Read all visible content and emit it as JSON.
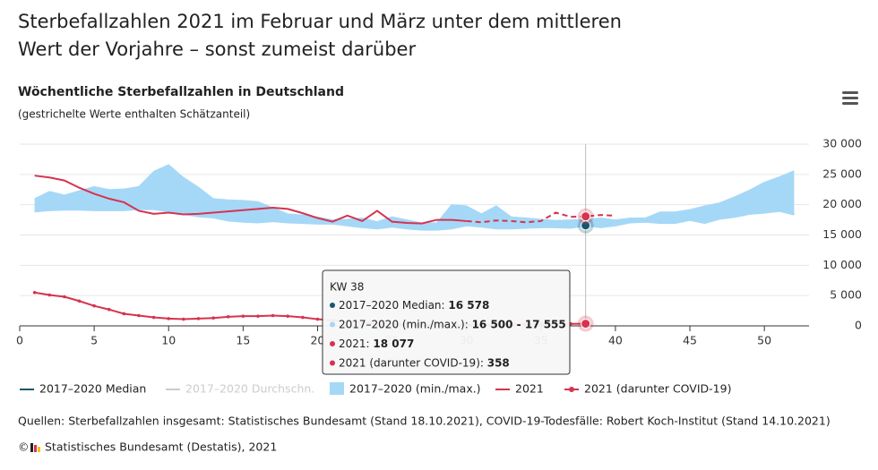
{
  "page_title": [
    "Sterbefallzahlen 2021 im Februar und März unter dem mittleren",
    "Wert der Vorjahre – sonst zumeist darüber"
  ],
  "chart_data": {
    "type": "line",
    "title": "Wöchentliche Sterbefallzahlen in Deutschland",
    "subtitle": "(gestrichelte Werte enthalten Schätzanteil)",
    "x": [
      1,
      2,
      3,
      4,
      5,
      6,
      7,
      8,
      9,
      10,
      11,
      12,
      13,
      14,
      15,
      16,
      17,
      18,
      19,
      20,
      21,
      22,
      23,
      24,
      25,
      26,
      27,
      28,
      29,
      30,
      31,
      32,
      33,
      34,
      35,
      36,
      37,
      38,
      39,
      40,
      41,
      42,
      43,
      44,
      45,
      46,
      47,
      48,
      49,
      50,
      51,
      52
    ],
    "xlim": [
      0,
      53
    ],
    "xticks": [
      0,
      5,
      10,
      15,
      20,
      25,
      30,
      35,
      40,
      45,
      50
    ],
    "ylim": [
      0,
      30000
    ],
    "yticks": [
      {
        "value": 0,
        "label": "0"
      },
      {
        "value": 5000,
        "label": "5 000"
      },
      {
        "value": 10000,
        "label": "10 000"
      },
      {
        "value": 15000,
        "label": "15 000"
      },
      {
        "value": 20000,
        "label": "20 000"
      },
      {
        "value": 25000,
        "label": "25 000"
      },
      {
        "value": 30000,
        "label": "30 000"
      }
    ],
    "grid": true,
    "series": [
      {
        "name": "2017–2020 Median",
        "color": "#15576f",
        "type": "line",
        "values": [
          19000,
          19100,
          19200,
          19300,
          19800,
          20000,
          20500,
          21200,
          20800,
          20000,
          19800,
          19400,
          19100,
          19300,
          18500,
          18000,
          17700,
          17200,
          17400,
          17100,
          16900,
          17000,
          16900,
          16400,
          16600,
          16800,
          16500,
          16100,
          16800,
          17600,
          17300,
          17000,
          16900,
          16600,
          16500,
          16500,
          16300,
          16578,
          17000,
          16900,
          17500,
          17400,
          17300,
          17300,
          17800,
          18000,
          18300,
          18500,
          18900,
          19000,
          19200,
          18500
        ]
      },
      {
        "name": "2017–2020 (min./max.)",
        "color": "#a5d8f7",
        "type": "range",
        "values": [
          21000,
          22200,
          21600,
          22300,
          23000,
          22500,
          22600,
          23000,
          25500,
          26600,
          24500,
          22900,
          21000,
          20800,
          20700,
          20500,
          19500,
          18500,
          18300,
          18000,
          17500,
          17600,
          17800,
          17200,
          18000,
          17500,
          17000,
          17000,
          20000,
          19800,
          18500,
          19800,
          18000,
          17800,
          17600,
          17400,
          17500,
          17555,
          17800,
          17500,
          17800,
          17800,
          18800,
          18800,
          19200,
          19800,
          20300,
          21300,
          22400,
          23700,
          24600,
          25600
        ],
        "low": [
          18800,
          19000,
          19100,
          19100,
          19000,
          19000,
          19000,
          19200,
          19200,
          18800,
          18400,
          18000,
          17800,
          17300,
          17100,
          17000,
          17200,
          17000,
          16900,
          16800,
          16800,
          16500,
          16200,
          16000,
          16300,
          16000,
          15800,
          15800,
          16000,
          16500,
          16300,
          16000,
          16000,
          16100,
          16200,
          16200,
          16100,
          16500,
          16200,
          16500,
          17000,
          17100,
          16900,
          16900,
          17400,
          16900,
          17600,
          17900,
          18400,
          18600,
          18900,
          18300
        ]
      },
      {
        "name": "2021",
        "color": "#d6334f",
        "type": "line",
        "estimated_from": 30,
        "values": [
          24800,
          24500,
          24000,
          22800,
          21800,
          21000,
          20400,
          19000,
          18500,
          18700,
          18400,
          18500,
          18700,
          18900,
          19100,
          19300,
          19500,
          19300,
          18600,
          17800,
          17200,
          18200,
          17300,
          19000,
          17200,
          17000,
          16900,
          17500,
          17500,
          17300,
          17100,
          17400,
          17300,
          17100,
          17300,
          18700,
          18000,
          18077,
          18300,
          18200,
          null,
          null,
          null,
          null,
          null,
          null,
          null,
          null,
          null,
          null,
          null,
          null
        ]
      },
      {
        "name": "2021 (darunter COVID-19)",
        "color": "#d6334f",
        "type": "line",
        "markers": true,
        "values": [
          5500,
          5100,
          4800,
          4100,
          3300,
          2700,
          2000,
          1700,
          1400,
          1200,
          1100,
          1200,
          1300,
          1500,
          1600,
          1600,
          1700,
          1600,
          1400,
          1100,
          900,
          700,
          500,
          400,
          300,
          250,
          200,
          180,
          170,
          180,
          200,
          220,
          250,
          280,
          300,
          320,
          340,
          358,
          null,
          null,
          null,
          null,
          null,
          null,
          null,
          null,
          null,
          null,
          null,
          null,
          null,
          null
        ]
      }
    ],
    "hidden_series": [
      {
        "name": "2017–2020 Durchschn.",
        "color": "#cccccc"
      }
    ],
    "highlight_x": 38,
    "tooltip": {
      "title": "KW 38",
      "rows": [
        {
          "label": "2017–2020 Median: ",
          "value": "16 578",
          "color": "#15576f"
        },
        {
          "label": "2017–2020 (min./max.): ",
          "value": "16 500 - 17 555",
          "color": "#a5d8f7"
        },
        {
          "label": "2021: ",
          "value": "18 077",
          "color": "#d6334f"
        },
        {
          "label": "2021 (darunter COVID-19): ",
          "value": "358",
          "color": "#d6334f"
        }
      ]
    }
  },
  "source": "Quellen: Sterbefallzahlen insgesamt: Statistisches Bundesamt (Stand 18.10.2021), COVID-19-Todesfälle: Robert Koch-Institut (Stand 14.10.2021)",
  "copyright": {
    "symbol": "©",
    "text": "Statistisches Bundesamt (Destatis), 2021"
  }
}
